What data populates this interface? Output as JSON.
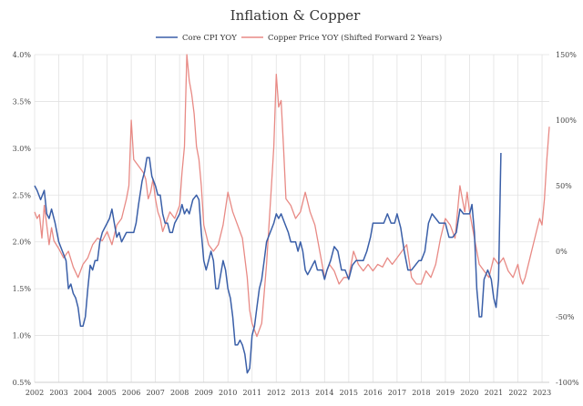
{
  "chart_data": {
    "type": "line",
    "title": "Inflation & Copper",
    "legend_position": "top-center",
    "grid": true,
    "x_ticks": [
      "2002",
      "2003",
      "2004",
      "2005",
      "2006",
      "2007",
      "2008",
      "2009",
      "2010",
      "2011",
      "2012",
      "2013",
      "2014",
      "2015",
      "2016",
      "2017",
      "2018",
      "2019",
      "2020",
      "2021",
      "2022",
      "2023"
    ],
    "xlim": [
      2002.0,
      2023.3
    ],
    "y_left": {
      "ticks": [
        "0.5%",
        "1.0%",
        "1.5%",
        "2.0%",
        "2.5%",
        "3.0%",
        "3.5%",
        "4.0%"
      ],
      "lim": [
        0.5,
        4.0
      ]
    },
    "y_right": {
      "ticks": [
        "-100%",
        "-50%",
        "0%",
        "50%",
        "100%",
        "150%"
      ],
      "lim": [
        -100,
        150
      ]
    },
    "series": [
      {
        "name": "Core CPI YOY",
        "axis": "left",
        "color": "#3a5fa8",
        "points": [
          [
            2002.0,
            2.6
          ],
          [
            2002.1,
            2.55
          ],
          [
            2002.25,
            2.45
          ],
          [
            2002.4,
            2.55
          ],
          [
            2002.5,
            2.3
          ],
          [
            2002.6,
            2.25
          ],
          [
            2002.7,
            2.35
          ],
          [
            2002.85,
            2.2
          ],
          [
            2003.0,
            2.0
          ],
          [
            2003.15,
            1.9
          ],
          [
            2003.3,
            1.8
          ],
          [
            2003.4,
            1.5
          ],
          [
            2003.5,
            1.55
          ],
          [
            2003.6,
            1.45
          ],
          [
            2003.7,
            1.4
          ],
          [
            2003.8,
            1.3
          ],
          [
            2003.9,
            1.1
          ],
          [
            2004.0,
            1.1
          ],
          [
            2004.1,
            1.2
          ],
          [
            2004.2,
            1.5
          ],
          [
            2004.3,
            1.75
          ],
          [
            2004.4,
            1.7
          ],
          [
            2004.5,
            1.8
          ],
          [
            2004.6,
            1.8
          ],
          [
            2004.7,
            2.0
          ],
          [
            2004.8,
            2.1
          ],
          [
            2005.0,
            2.2
          ],
          [
            2005.1,
            2.25
          ],
          [
            2005.2,
            2.35
          ],
          [
            2005.3,
            2.2
          ],
          [
            2005.4,
            2.05
          ],
          [
            2005.5,
            2.1
          ],
          [
            2005.6,
            2.0
          ],
          [
            2005.7,
            2.05
          ],
          [
            2005.8,
            2.1
          ],
          [
            2006.0,
            2.1
          ],
          [
            2006.1,
            2.1
          ],
          [
            2006.2,
            2.2
          ],
          [
            2006.3,
            2.4
          ],
          [
            2006.45,
            2.65
          ],
          [
            2006.55,
            2.75
          ],
          [
            2006.65,
            2.9
          ],
          [
            2006.75,
            2.9
          ],
          [
            2006.85,
            2.7
          ],
          [
            2007.0,
            2.6
          ],
          [
            2007.1,
            2.5
          ],
          [
            2007.2,
            2.5
          ],
          [
            2007.3,
            2.3
          ],
          [
            2007.4,
            2.2
          ],
          [
            2007.5,
            2.2
          ],
          [
            2007.6,
            2.1
          ],
          [
            2007.7,
            2.1
          ],
          [
            2007.8,
            2.2
          ],
          [
            2008.0,
            2.3
          ],
          [
            2008.1,
            2.4
          ],
          [
            2008.2,
            2.3
          ],
          [
            2008.3,
            2.35
          ],
          [
            2008.4,
            2.3
          ],
          [
            2008.55,
            2.45
          ],
          [
            2008.7,
            2.5
          ],
          [
            2008.8,
            2.45
          ],
          [
            2008.9,
            2.1
          ],
          [
            2009.0,
            1.8
          ],
          [
            2009.1,
            1.7
          ],
          [
            2009.2,
            1.8
          ],
          [
            2009.3,
            1.9
          ],
          [
            2009.4,
            1.8
          ],
          [
            2009.5,
            1.5
          ],
          [
            2009.6,
            1.5
          ],
          [
            2009.7,
            1.65
          ],
          [
            2009.8,
            1.8
          ],
          [
            2009.9,
            1.7
          ],
          [
            2010.0,
            1.5
          ],
          [
            2010.1,
            1.4
          ],
          [
            2010.2,
            1.2
          ],
          [
            2010.3,
            0.9
          ],
          [
            2010.4,
            0.9
          ],
          [
            2010.5,
            0.95
          ],
          [
            2010.6,
            0.9
          ],
          [
            2010.7,
            0.8
          ],
          [
            2010.8,
            0.6
          ],
          [
            2010.9,
            0.65
          ],
          [
            2011.0,
            1.0
          ],
          [
            2011.1,
            1.1
          ],
          [
            2011.2,
            1.3
          ],
          [
            2011.3,
            1.5
          ],
          [
            2011.4,
            1.6
          ],
          [
            2011.5,
            1.8
          ],
          [
            2011.6,
            2.0
          ],
          [
            2011.75,
            2.1
          ],
          [
            2011.9,
            2.2
          ],
          [
            2012.0,
            2.3
          ],
          [
            2012.1,
            2.25
          ],
          [
            2012.2,
            2.3
          ],
          [
            2012.35,
            2.2
          ],
          [
            2012.5,
            2.1
          ],
          [
            2012.6,
            2.0
          ],
          [
            2012.7,
            2.0
          ],
          [
            2012.8,
            2.0
          ],
          [
            2012.9,
            1.9
          ],
          [
            2013.0,
            2.0
          ],
          [
            2013.1,
            1.9
          ],
          [
            2013.2,
            1.7
          ],
          [
            2013.3,
            1.65
          ],
          [
            2013.4,
            1.7
          ],
          [
            2013.5,
            1.75
          ],
          [
            2013.6,
            1.8
          ],
          [
            2013.7,
            1.7
          ],
          [
            2013.8,
            1.7
          ],
          [
            2013.9,
            1.7
          ],
          [
            2014.0,
            1.6
          ],
          [
            2014.1,
            1.7
          ],
          [
            2014.25,
            1.8
          ],
          [
            2014.4,
            1.95
          ],
          [
            2014.55,
            1.9
          ],
          [
            2014.7,
            1.7
          ],
          [
            2014.85,
            1.7
          ],
          [
            2015.0,
            1.6
          ],
          [
            2015.15,
            1.75
          ],
          [
            2015.3,
            1.8
          ],
          [
            2015.45,
            1.8
          ],
          [
            2015.6,
            1.8
          ],
          [
            2015.75,
            1.9
          ],
          [
            2015.9,
            2.05
          ],
          [
            2016.0,
            2.2
          ],
          [
            2016.15,
            2.2
          ],
          [
            2016.3,
            2.2
          ],
          [
            2016.45,
            2.2
          ],
          [
            2016.6,
            2.3
          ],
          [
            2016.75,
            2.2
          ],
          [
            2016.9,
            2.2
          ],
          [
            2017.0,
            2.3
          ],
          [
            2017.15,
            2.15
          ],
          [
            2017.3,
            1.9
          ],
          [
            2017.45,
            1.7
          ],
          [
            2017.6,
            1.7
          ],
          [
            2017.75,
            1.75
          ],
          [
            2017.9,
            1.8
          ],
          [
            2018.0,
            1.8
          ],
          [
            2018.15,
            1.9
          ],
          [
            2018.3,
            2.2
          ],
          [
            2018.45,
            2.3
          ],
          [
            2018.6,
            2.25
          ],
          [
            2018.75,
            2.2
          ],
          [
            2018.9,
            2.2
          ],
          [
            2019.0,
            2.2
          ],
          [
            2019.15,
            2.05
          ],
          [
            2019.3,
            2.05
          ],
          [
            2019.45,
            2.1
          ],
          [
            2019.6,
            2.35
          ],
          [
            2019.75,
            2.3
          ],
          [
            2019.9,
            2.3
          ],
          [
            2020.0,
            2.3
          ],
          [
            2020.1,
            2.4
          ],
          [
            2020.2,
            2.1
          ],
          [
            2020.3,
            1.5
          ],
          [
            2020.4,
            1.2
          ],
          [
            2020.5,
            1.2
          ],
          [
            2020.6,
            1.6
          ],
          [
            2020.75,
            1.7
          ],
          [
            2020.9,
            1.6
          ],
          [
            2021.0,
            1.4
          ],
          [
            2021.1,
            1.3
          ],
          [
            2021.2,
            1.6
          ],
          [
            2021.3,
            2.95
          ]
        ]
      },
      {
        "name": "Copper Price YOY (Shifted Forward 2 Years)",
        "axis": "right",
        "color": "#e88a85",
        "points": [
          [
            2002.0,
            30
          ],
          [
            2002.1,
            25
          ],
          [
            2002.2,
            28
          ],
          [
            2002.3,
            10
          ],
          [
            2002.4,
            35
          ],
          [
            2002.5,
            20
          ],
          [
            2002.6,
            5
          ],
          [
            2002.7,
            18
          ],
          [
            2002.8,
            8
          ],
          [
            2003.0,
            2
          ],
          [
            2003.2,
            -5
          ],
          [
            2003.4,
            0
          ],
          [
            2003.6,
            -12
          ],
          [
            2003.8,
            -20
          ],
          [
            2004.0,
            -10
          ],
          [
            2004.2,
            -5
          ],
          [
            2004.4,
            5
          ],
          [
            2004.6,
            10
          ],
          [
            2004.8,
            8
          ],
          [
            2005.0,
            15
          ],
          [
            2005.2,
            5
          ],
          [
            2005.4,
            20
          ],
          [
            2005.6,
            25
          ],
          [
            2005.8,
            40
          ],
          [
            2005.9,
            50
          ],
          [
            2006.0,
            100
          ],
          [
            2006.1,
            70
          ],
          [
            2006.3,
            65
          ],
          [
            2006.5,
            60
          ],
          [
            2006.6,
            55
          ],
          [
            2006.7,
            40
          ],
          [
            2006.8,
            45
          ],
          [
            2006.9,
            55
          ],
          [
            2007.0,
            40
          ],
          [
            2007.1,
            30
          ],
          [
            2007.2,
            25
          ],
          [
            2007.3,
            15
          ],
          [
            2007.4,
            20
          ],
          [
            2007.6,
            30
          ],
          [
            2007.8,
            25
          ],
          [
            2008.0,
            35
          ],
          [
            2008.1,
            60
          ],
          [
            2008.2,
            80
          ],
          [
            2008.3,
            150
          ],
          [
            2008.4,
            130
          ],
          [
            2008.5,
            120
          ],
          [
            2008.6,
            105
          ],
          [
            2008.7,
            80
          ],
          [
            2008.8,
            70
          ],
          [
            2008.9,
            50
          ],
          [
            2009.0,
            20
          ],
          [
            2009.2,
            5
          ],
          [
            2009.4,
            0
          ],
          [
            2009.6,
            5
          ],
          [
            2009.8,
            20
          ],
          [
            2010.0,
            45
          ],
          [
            2010.2,
            30
          ],
          [
            2010.4,
            20
          ],
          [
            2010.6,
            10
          ],
          [
            2010.8,
            -20
          ],
          [
            2010.9,
            -45
          ],
          [
            2011.0,
            -55
          ],
          [
            2011.2,
            -65
          ],
          [
            2011.4,
            -55
          ],
          [
            2011.6,
            -10
          ],
          [
            2011.8,
            50
          ],
          [
            2011.9,
            80
          ],
          [
            2012.0,
            135
          ],
          [
            2012.1,
            110
          ],
          [
            2012.2,
            115
          ],
          [
            2012.3,
            80
          ],
          [
            2012.4,
            40
          ],
          [
            2012.6,
            35
          ],
          [
            2012.8,
            25
          ],
          [
            2013.0,
            30
          ],
          [
            2013.2,
            45
          ],
          [
            2013.4,
            30
          ],
          [
            2013.6,
            20
          ],
          [
            2013.8,
            0
          ],
          [
            2014.0,
            -20
          ],
          [
            2014.2,
            -10
          ],
          [
            2014.4,
            -15
          ],
          [
            2014.6,
            -25
          ],
          [
            2014.8,
            -20
          ],
          [
            2015.0,
            -20
          ],
          [
            2015.2,
            0
          ],
          [
            2015.4,
            -10
          ],
          [
            2015.6,
            -15
          ],
          [
            2015.8,
            -10
          ],
          [
            2016.0,
            -15
          ],
          [
            2016.2,
            -10
          ],
          [
            2016.4,
            -12
          ],
          [
            2016.6,
            -5
          ],
          [
            2016.8,
            -10
          ],
          [
            2017.0,
            -5
          ],
          [
            2017.2,
            0
          ],
          [
            2017.4,
            5
          ],
          [
            2017.6,
            -20
          ],
          [
            2017.8,
            -25
          ],
          [
            2018.0,
            -25
          ],
          [
            2018.2,
            -15
          ],
          [
            2018.4,
            -20
          ],
          [
            2018.6,
            -10
          ],
          [
            2018.8,
            10
          ],
          [
            2019.0,
            25
          ],
          [
            2019.2,
            20
          ],
          [
            2019.4,
            10
          ],
          [
            2019.5,
            30
          ],
          [
            2019.6,
            50
          ],
          [
            2019.7,
            40
          ],
          [
            2019.8,
            30
          ],
          [
            2019.9,
            45
          ],
          [
            2020.0,
            30
          ],
          [
            2020.2,
            10
          ],
          [
            2020.4,
            -10
          ],
          [
            2020.6,
            -15
          ],
          [
            2020.8,
            -20
          ],
          [
            2021.0,
            -5
          ],
          [
            2021.2,
            -10
          ],
          [
            2021.4,
            -5
          ],
          [
            2021.6,
            -15
          ],
          [
            2021.8,
            -20
          ],
          [
            2022.0,
            -10
          ],
          [
            2022.1,
            -20
          ],
          [
            2022.2,
            -25
          ],
          [
            2022.3,
            -20
          ],
          [
            2022.5,
            -5
          ],
          [
            2022.7,
            10
          ],
          [
            2022.9,
            25
          ],
          [
            2023.0,
            20
          ],
          [
            2023.1,
            40
          ],
          [
            2023.2,
            70
          ],
          [
            2023.3,
            95
          ]
        ]
      }
    ]
  }
}
